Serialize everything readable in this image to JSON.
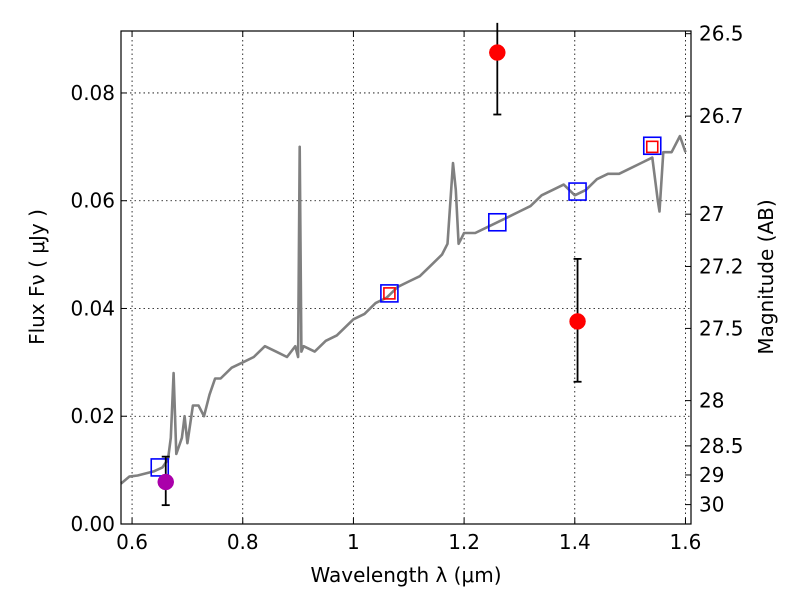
{
  "chart_data": {
    "type": "scatter",
    "title": "",
    "xlabel": "Wavelength  λ (μm)",
    "ylabel": "Flux  Fν  ( μJy )",
    "ylabel_right": "Magnitude (AB)",
    "xlim": [
      0.58,
      1.61
    ],
    "ylim": [
      0.0,
      0.0915
    ],
    "grid": true,
    "x_ticks": [
      0.6,
      0.8,
      1.0,
      1.2,
      1.4,
      1.6
    ],
    "x_tick_labels": [
      "0.6",
      "0.8",
      "1",
      "1.2",
      "1.4",
      "1.6"
    ],
    "y_ticks": [
      0.0,
      0.02,
      0.04,
      0.06,
      0.08
    ],
    "y_tick_labels": [
      "0.00",
      "0.02",
      "0.04",
      "0.06",
      "0.08"
    ],
    "right_axis_ticks": [
      {
        "label": "26.5",
        "flux": 0.091
      },
      {
        "label": "26.7",
        "flux": 0.0757
      },
      {
        "label": "27",
        "flux": 0.0575
      },
      {
        "label": "27.2",
        "flux": 0.0478
      },
      {
        "label": "27.5",
        "flux": 0.0363
      },
      {
        "label": "28",
        "flux": 0.0229
      },
      {
        "label": "28.5",
        "flux": 0.0145
      },
      {
        "label": "29",
        "flux": 0.0091
      },
      {
        "label": "30",
        "flux": 0.0036
      }
    ],
    "series": [
      {
        "name": "model-spectrum",
        "style": "line",
        "color": "#808080",
        "x": [
          0.58,
          0.595,
          0.61,
          0.625,
          0.64,
          0.655,
          0.665,
          0.67,
          0.675,
          0.68,
          0.69,
          0.695,
          0.7,
          0.71,
          0.72,
          0.73,
          0.74,
          0.75,
          0.76,
          0.78,
          0.8,
          0.82,
          0.84,
          0.86,
          0.88,
          0.895,
          0.9,
          0.903,
          0.906,
          0.91,
          0.93,
          0.95,
          0.97,
          1.0,
          1.02,
          1.04,
          1.06,
          1.08,
          1.1,
          1.12,
          1.14,
          1.16,
          1.17,
          1.18,
          1.185,
          1.19,
          1.2,
          1.22,
          1.24,
          1.26,
          1.28,
          1.3,
          1.32,
          1.34,
          1.36,
          1.38,
          1.4,
          1.42,
          1.44,
          1.46,
          1.48,
          1.5,
          1.52,
          1.54,
          1.55,
          1.553,
          1.56,
          1.575,
          1.59,
          1.6
        ],
        "y": [
          0.0075,
          0.0088,
          0.009,
          0.0094,
          0.0098,
          0.0105,
          0.012,
          0.016,
          0.028,
          0.013,
          0.016,
          0.02,
          0.015,
          0.022,
          0.022,
          0.02,
          0.024,
          0.027,
          0.027,
          0.029,
          0.03,
          0.031,
          0.033,
          0.032,
          0.031,
          0.033,
          0.031,
          0.07,
          0.032,
          0.033,
          0.032,
          0.034,
          0.035,
          0.038,
          0.039,
          0.041,
          0.042,
          0.044,
          0.045,
          0.046,
          0.048,
          0.05,
          0.052,
          0.067,
          0.062,
          0.052,
          0.054,
          0.054,
          0.055,
          0.056,
          0.057,
          0.058,
          0.059,
          0.061,
          0.062,
          0.063,
          0.061,
          0.062,
          0.064,
          0.065,
          0.065,
          0.066,
          0.067,
          0.068,
          0.06,
          0.058,
          0.069,
          0.069,
          0.072,
          0.069
        ]
      },
      {
        "name": "model-photometry",
        "style": "open-square",
        "color": "#0000ff",
        "x": [
          0.65,
          1.065,
          1.26,
          1.405,
          1.54
        ],
        "y": [
          0.0105,
          0.0428,
          0.056,
          0.0617,
          0.0702
        ]
      },
      {
        "name": "model-photometry-inner",
        "style": "open-square-small",
        "color": "#ff0000",
        "x": [
          1.065,
          1.54
        ],
        "y": [
          0.0428,
          0.07
        ]
      },
      {
        "name": "observed-detections",
        "style": "filled-circle",
        "color": "#ff0000",
        "x": [
          1.26,
          1.405
        ],
        "y": [
          0.0875,
          0.0376
        ],
        "yerr_low": [
          0.0115,
          0.0112
        ],
        "yerr_high": [
          0.0055,
          0.0116
        ]
      },
      {
        "name": "observed-blue-band",
        "style": "filled-circle",
        "color": "#aa00aa",
        "x": [
          0.65
        ],
        "y": [
          0.0078
        ],
        "yerr_low": [
          0.0043
        ],
        "yerr_high": [
          0.0047
        ]
      }
    ]
  }
}
